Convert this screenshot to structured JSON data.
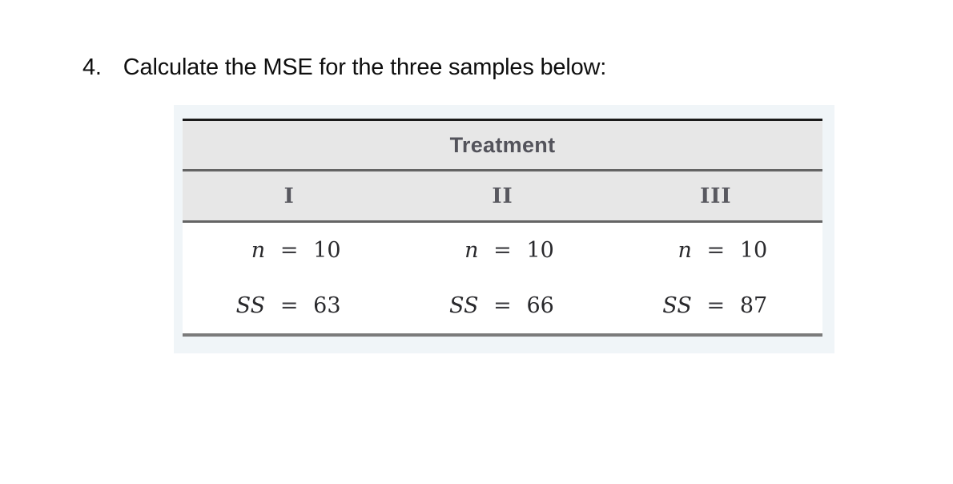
{
  "question": {
    "number": "4.",
    "text": "Calculate the MSE for the three samples below:"
  },
  "table": {
    "header": "Treatment",
    "groups": [
      {
        "label": "I",
        "stats": [
          {
            "name": "n",
            "eq": "=",
            "value": "10"
          },
          {
            "name": "SS",
            "eq": "=",
            "value": "63"
          }
        ]
      },
      {
        "label": "II",
        "stats": [
          {
            "name": "n",
            "eq": "=",
            "value": "10"
          },
          {
            "name": "SS",
            "eq": "=",
            "value": "66"
          }
        ]
      },
      {
        "label": "III",
        "stats": [
          {
            "name": "n",
            "eq": "=",
            "value": "10"
          },
          {
            "name": "SS",
            "eq": "=",
            "value": "87"
          }
        ]
      }
    ]
  },
  "colors": {
    "panel_bg": "#f0f5f8",
    "header_bg": "#e7e7e7",
    "top_border": "#1a1a1a",
    "divider": "#646464",
    "bottom_border": "#7b7b7b",
    "header_text": "#53535b",
    "math_text": "#29292c"
  }
}
